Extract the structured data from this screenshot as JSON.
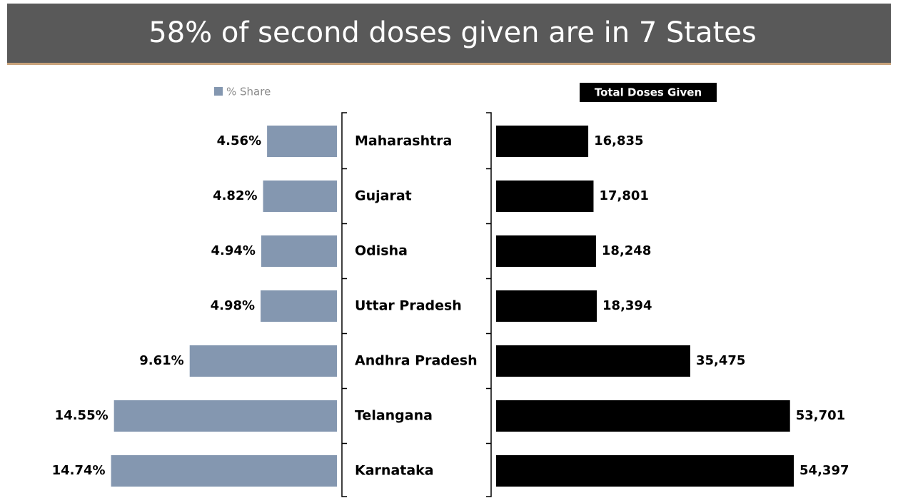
{
  "title": "58% of second doses given are in 7 States",
  "chart_data": [
    {
      "type": "bar",
      "orientation": "horizontal",
      "direction": "left",
      "categories": [
        "Maharashtra",
        "Gujarat",
        "Odisha",
        "Uttar Pradesh",
        "Andhra Pradesh",
        "Telangana",
        "Karnataka"
      ],
      "series": [
        {
          "name": "% Share",
          "color": "#8497b0",
          "values": [
            4.56,
            4.82,
            4.94,
            4.98,
            9.61,
            14.55,
            14.74
          ],
          "value_labels": [
            "4.56%",
            "4.82%",
            "4.94%",
            "4.98%",
            "9.61%",
            "14.55%",
            "14.74%"
          ]
        }
      ],
      "xlim": [
        0,
        15
      ]
    },
    {
      "type": "bar",
      "orientation": "horizontal",
      "direction": "right",
      "series": [
        {
          "name": "Total Doses Given",
          "color": "#000000",
          "values": [
            16835,
            17801,
            18248,
            18394,
            35475,
            53701,
            54397
          ],
          "value_labels": [
            "16,835",
            "17,801",
            "18,248",
            "18,394",
            "35,475",
            "53,701",
            "54,397"
          ]
        }
      ],
      "xlim": [
        0,
        60000
      ]
    }
  ]
}
